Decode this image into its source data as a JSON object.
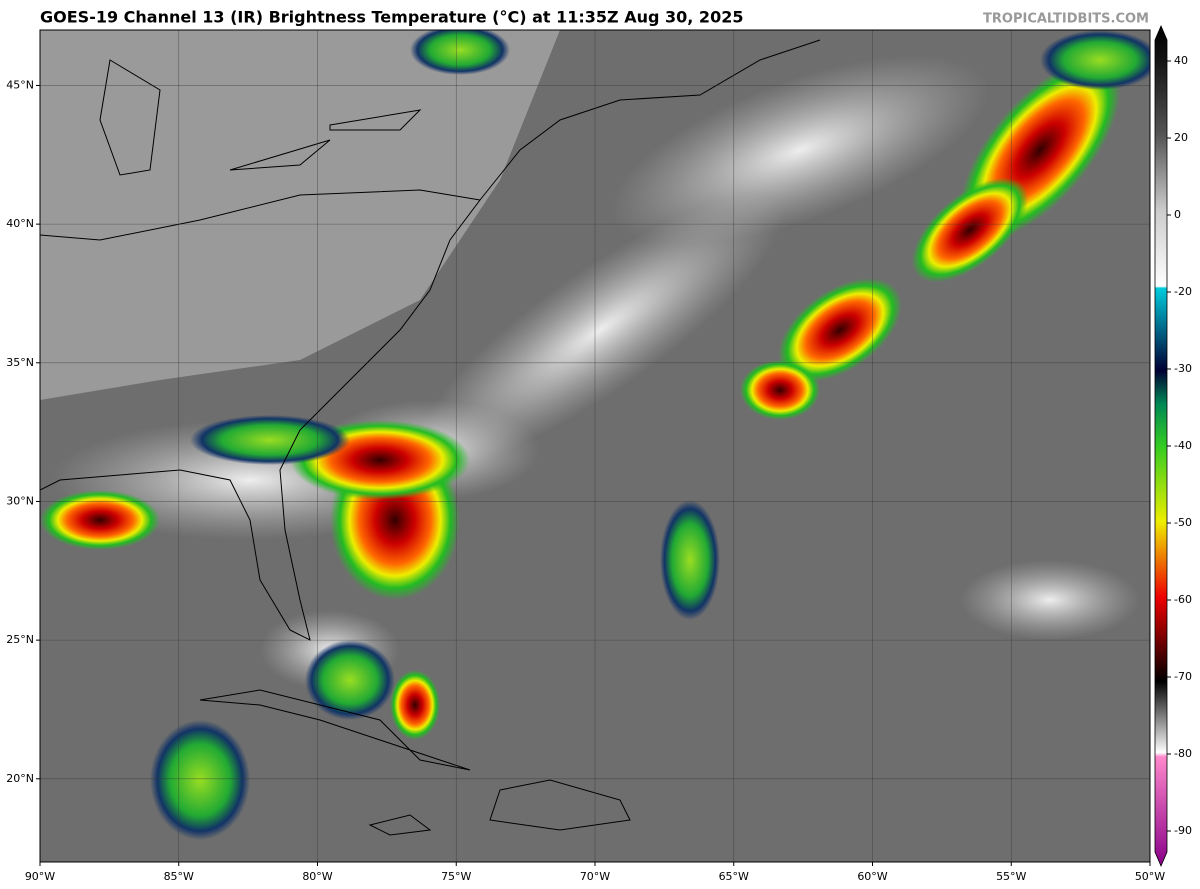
{
  "header": {
    "title": "GOES-19 Channel 13 (IR) Brightness Temperature (°C) at 11:35Z Aug 30, 2025",
    "credit": "TROPICALTIDBITS.COM"
  },
  "map": {
    "lon_range": [
      -90,
      -50
    ],
    "lat_range": [
      17,
      47
    ],
    "lon_ticks": [
      {
        "value": -90,
        "label": "90°W"
      },
      {
        "value": -85,
        "label": "85°W"
      },
      {
        "value": -80,
        "label": "80°W"
      },
      {
        "value": -75,
        "label": "75°W"
      },
      {
        "value": -70,
        "label": "70°W"
      },
      {
        "value": -65,
        "label": "65°W"
      },
      {
        "value": -60,
        "label": "60°W"
      },
      {
        "value": -55,
        "label": "55°W"
      },
      {
        "value": -50,
        "label": "50°W"
      }
    ],
    "lat_ticks": [
      {
        "value": 20,
        "label": "20°N"
      },
      {
        "value": 25,
        "label": "25°N"
      },
      {
        "value": 30,
        "label": "30°N"
      },
      {
        "value": 35,
        "label": "35°N"
      },
      {
        "value": 40,
        "label": "40°N"
      },
      {
        "value": 45,
        "label": "45°N"
      }
    ],
    "colorbar": {
      "ticks": [
        40,
        20,
        0,
        -20,
        -30,
        -40,
        -50,
        -60,
        -70,
        -80,
        -90
      ]
    }
  }
}
